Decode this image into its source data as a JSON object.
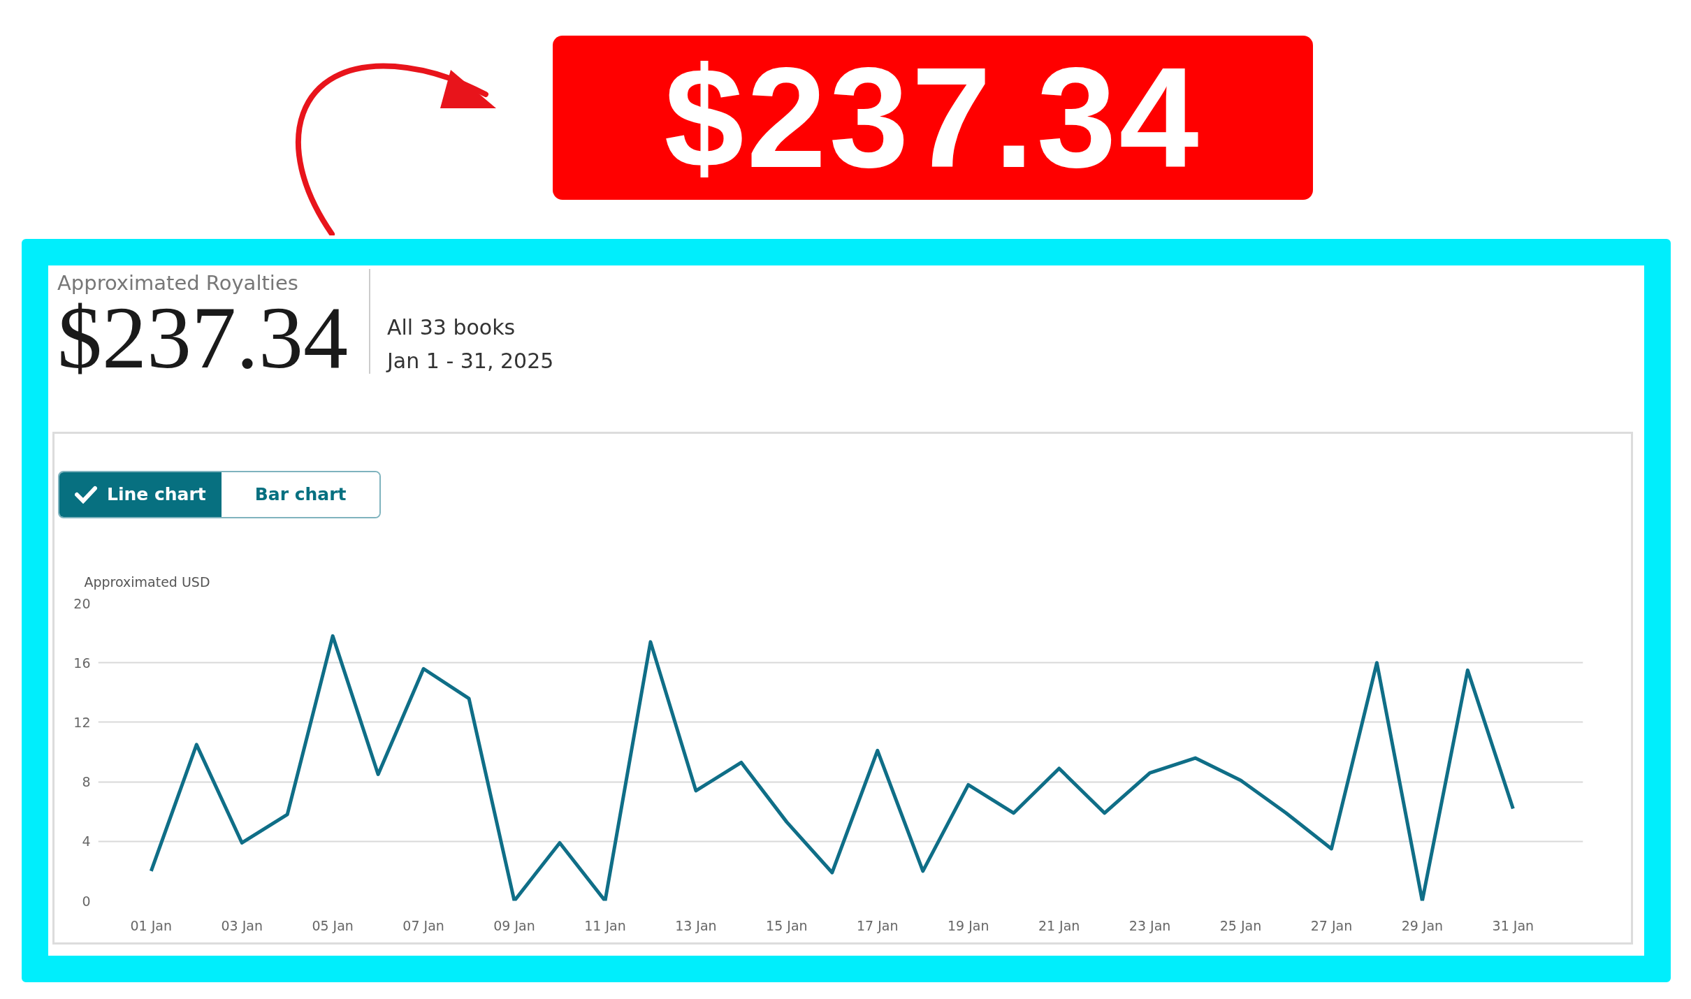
{
  "chart_data": {
    "type": "line",
    "title": "Approximated Royalties",
    "subtitle": "All 33 books",
    "annotations": [
      "$237.34",
      "$237.34",
      "Jan 1 - 31, 2025",
      "Line chart",
      "Bar chart"
    ],
    "ylabel": "Approximated USD",
    "x": [
      "2025-01-01",
      "2025-01-02",
      "2025-01-03",
      "2025-01-04",
      "2025-01-05",
      "2025-01-06",
      "2025-01-07",
      "2025-01-08",
      "2025-01-09",
      "2025-01-10",
      "2025-01-11",
      "2025-01-12",
      "2025-01-13",
      "2025-01-14",
      "2025-01-15",
      "2025-01-16",
      "2025-01-17",
      "2025-01-18",
      "2025-01-19",
      "2025-01-20",
      "2025-01-21",
      "2025-01-22",
      "2025-01-23",
      "2025-01-24",
      "2025-01-25",
      "2025-01-26",
      "2025-01-27",
      "2025-01-28",
      "2025-01-29",
      "2025-01-30",
      "2025-01-31"
    ],
    "series": [
      {
        "color": "#0f6e87",
        "values": [
          2.0,
          10.5,
          3.9,
          5.8,
          17.8,
          8.5,
          15.6,
          13.6,
          0,
          3.9,
          0,
          17.4,
          7.4,
          9.3,
          5.3,
          1.9,
          10.1,
          2.0,
          7.8,
          5.9,
          8.9,
          5.9,
          8.6,
          9.6,
          8.1,
          5.9,
          3.5,
          16.0,
          0,
          15.5,
          6.2
        ]
      }
    ],
    "xlim": [
      "2024-12-30T20:00",
      "2025-02-01T13:00"
    ],
    "xticks": [
      {
        "value": "2025-01-01",
        "label": "01 Jan"
      },
      {
        "value": "2025-01-03",
        "label": "03 Jan"
      },
      {
        "value": "2025-01-05",
        "label": "05 Jan"
      },
      {
        "value": "2025-01-07",
        "label": "07 Jan"
      },
      {
        "value": "2025-01-09",
        "label": "09 Jan"
      },
      {
        "value": "2025-01-11",
        "label": "11 Jan"
      },
      {
        "value": "2025-01-13",
        "label": "13 Jan"
      },
      {
        "value": "2025-01-15",
        "label": "15 Jan"
      },
      {
        "value": "2025-01-17",
        "label": "17 Jan"
      },
      {
        "value": "2025-01-19",
        "label": "19 Jan"
      },
      {
        "value": "2025-01-21",
        "label": "21 Jan"
      },
      {
        "value": "2025-01-23",
        "label": "23 Jan"
      },
      {
        "value": "2025-01-25",
        "label": "25 Jan"
      },
      {
        "value": "2025-01-27",
        "label": "27 Jan"
      },
      {
        "value": "2025-01-29",
        "label": "29 Jan"
      },
      {
        "value": "2025-01-31",
        "label": "31 Jan"
      }
    ],
    "ylim": [
      0,
      20
    ],
    "yticks": [
      0,
      4,
      8,
      12,
      16,
      20
    ],
    "grid": "y"
  }
}
